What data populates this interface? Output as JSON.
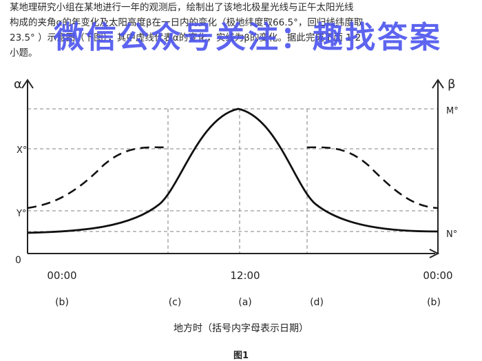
{
  "question": {
    "lines": [
      "某地理研究小组在某地进行一年的观测后，绘制出了该地北极星光线与正午太阳光线",
      "构成的夹角α的年变化及太阳高度β在一日内的变化（极地纬度取66.5°，回归线纬度取",
      "23.5° ）示意图（下图），其中虚线代表α的变化，实线为β的变化。据此完成下面 1-2",
      "小题。"
    ]
  },
  "watermark": "微信公众号关注：趣找答案",
  "chart_data": {
    "type": "line",
    "left_axis_label": "α",
    "right_axis_label": "β",
    "origin_label": "0",
    "left_ticks": [
      "X°",
      "Y°"
    ],
    "right_ticks": [
      "M°",
      "N°"
    ],
    "x_ticks": [
      "00:00",
      "12:00",
      "00:00"
    ],
    "date_labels": [
      "(b)",
      "(c)",
      "(a)",
      "(d)",
      "(b)"
    ],
    "series": [
      {
        "style": "dashed",
        "values": [
          0.0,
          0.3,
          0.7,
          1.0,
          1.0,
          0.7,
          0.3,
          0.0
        ]
      },
      {
        "style": "solid",
        "values": [
          0.1,
          0.2,
          0.8,
          1.0,
          0.8,
          0.2,
          0.1
        ]
      }
    ],
    "xlabel": "地方时（括号内字母表示日期）",
    "figure_title": "图1"
  }
}
